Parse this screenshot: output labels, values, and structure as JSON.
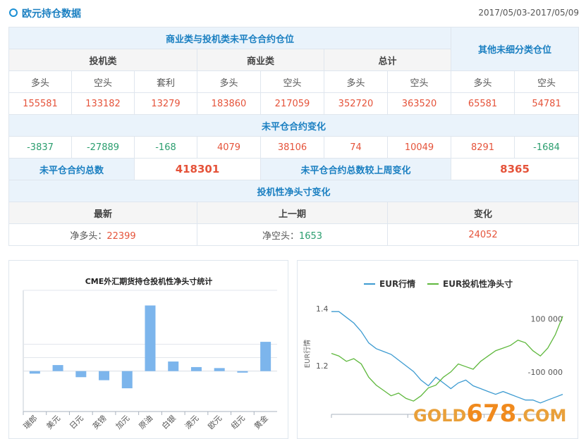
{
  "header": {
    "title": "欧元持仓数据",
    "date_range": "2017/05/03-2017/05/09"
  },
  "table": {
    "section_main": "商业类与投机类未平仓合约仓位",
    "section_other": "其他未细分类仓位",
    "group_spec": "投机类",
    "group_comm": "商业类",
    "group_total": "总计",
    "col_long": "多头",
    "col_short": "空头",
    "col_arb": "套利",
    "values": [
      "155581",
      "133182",
      "13279",
      "183860",
      "217059",
      "352720",
      "363520",
      "65581",
      "54781"
    ],
    "change_title": "未平仓合约变化",
    "changes": [
      "-3837",
      "-27889",
      "-168",
      "4079",
      "38106",
      "74",
      "10049",
      "8291",
      "-1684"
    ],
    "total_label": "未平仓合约总数",
    "total_value": "418301",
    "total_change_label": "未平仓合约总数较上周变化",
    "total_change_value": "8365",
    "net_title": "投机性净头寸变化",
    "net_latest_label": "最新",
    "net_prev_label": "上一期",
    "net_change_label": "变化",
    "net_latest_prefix": "净多头：",
    "net_latest_value": "22399",
    "net_prev_prefix": "净空头：",
    "net_prev_value": "1653",
    "net_change_value": "24052"
  },
  "colors": {
    "accent": "#1a7fc1",
    "up": "#e5533a",
    "down": "#2a9d6e",
    "bar": "#7cb5ec",
    "line_blue": "#3d9bd1",
    "line_green": "#5fb83d"
  },
  "chart_data": [
    {
      "type": "bar",
      "title": "CME外汇期货持仓投机性净头寸统计",
      "categories": [
        "瑞郎",
        "美元",
        "日元",
        "英镑",
        "加元",
        "原油",
        "白银",
        "澳元",
        "欧元",
        "纽元",
        "黄金"
      ],
      "values": [
        -0.05,
        0.12,
        -0.12,
        -0.18,
        -0.34,
        1.3,
        0.19,
        0.08,
        0.06,
        -0.03,
        0.58
      ],
      "ylim": [
        -0.8,
        1.6
      ],
      "grid": true
    },
    {
      "type": "line",
      "series": [
        {
          "name": "EUR行情",
          "values": [
            1.39,
            1.39,
            1.37,
            1.35,
            1.32,
            1.28,
            1.26,
            1.25,
            1.24,
            1.22,
            1.2,
            1.18,
            1.15,
            1.13,
            1.16,
            1.14,
            1.12,
            1.14,
            1.15,
            1.13,
            1.12,
            1.11,
            1.1,
            1.11,
            1.1,
            1.09,
            1.08,
            1.08,
            1.07,
            1.08,
            1.09,
            1.1
          ]
        },
        {
          "name": "EUR投机性净头寸",
          "values": [
            -30000,
            -40000,
            -60000,
            -50000,
            -70000,
            -120000,
            -150000,
            -170000,
            -190000,
            -180000,
            -200000,
            -210000,
            -190000,
            -160000,
            -150000,
            -120000,
            -100000,
            -70000,
            -80000,
            -90000,
            -60000,
            -40000,
            -20000,
            -10000,
            0,
            20000,
            10000,
            -20000,
            -40000,
            -10000,
            40000,
            110000
          ]
        }
      ],
      "ylabel": "EUR行情",
      "y_ticks": [
        "1.4",
        "1.2"
      ],
      "y2_ticks": [
        "100 000",
        "-100 000"
      ],
      "ylim": [
        1.03,
        1.42
      ],
      "y2lim": [
        -260000,
        160000
      ],
      "legend": "top"
    }
  ],
  "watermark": {
    "brand_left": "GOLD",
    "brand_num": "678",
    "brand_right": ".COM"
  }
}
